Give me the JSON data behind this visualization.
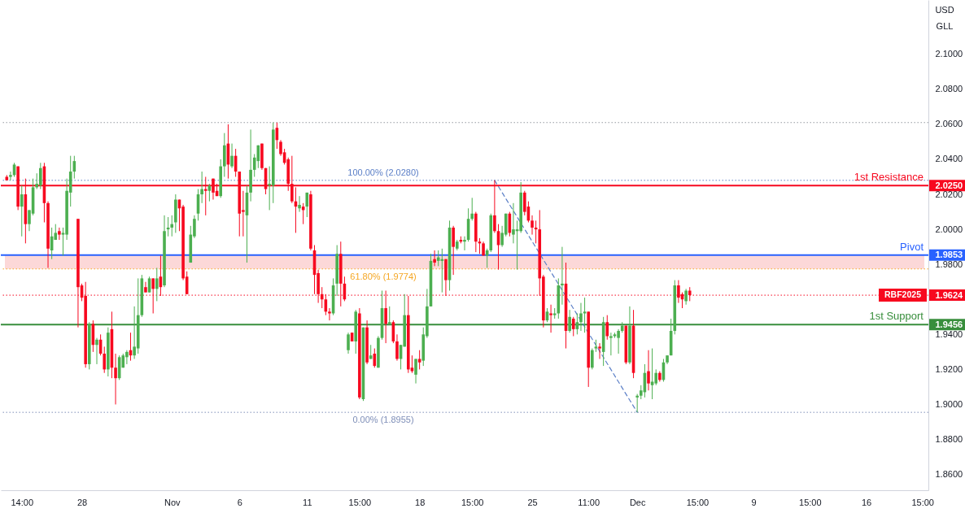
{
  "chart_data": {
    "type": "candlestick",
    "categories": [
      null,
      null,
      null,
      null,
      "14:00",
      null,
      null,
      null,
      null,
      null,
      null,
      null,
      null,
      null,
      null,
      null,
      null,
      null,
      null,
      null,
      "28",
      null,
      null,
      null,
      null,
      null,
      null,
      null,
      null,
      null,
      null,
      null,
      null,
      null,
      null,
      null,
      null,
      null,
      null,
      null,
      null,
      null,
      null,
      null,
      "Nov",
      null,
      null,
      null,
      null,
      null,
      null,
      null,
      null,
      null,
      null,
      null,
      null,
      null,
      null,
      null,
      null,
      null,
      "6",
      null,
      null,
      null,
      null,
      null,
      null,
      null,
      null,
      null,
      null,
      null,
      null,
      null,
      null,
      null,
      null,
      null,
      "11",
      null,
      null,
      null,
      null,
      null,
      null,
      null,
      null,
      null,
      null,
      null,
      null,
      null,
      "15:00",
      null,
      null,
      null,
      null,
      null,
      null,
      null,
      null,
      null,
      null,
      null,
      null,
      null,
      null,
      null,
      "18",
      null,
      null,
      null,
      null,
      null,
      null,
      null,
      null,
      null,
      null,
      null,
      null,
      null,
      "15:00",
      null,
      null,
      null,
      null,
      null,
      null,
      null,
      null,
      null,
      null,
      null,
      null,
      null,
      null,
      null,
      "25",
      null,
      null,
      null,
      null,
      null,
      null,
      null,
      null,
      null,
      null,
      null,
      null,
      null,
      null,
      "11:00",
      null,
      null,
      null,
      null,
      null,
      null,
      null,
      null,
      null,
      null,
      null,
      null,
      "Dec",
      null,
      null,
      null,
      null,
      null,
      null,
      null,
      null,
      null,
      null,
      null,
      null,
      null,
      null,
      null,
      "15:00",
      null,
      null,
      null,
      null,
      null,
      null,
      null,
      null,
      null,
      null,
      null,
      null,
      null,
      null,
      "9",
      null,
      null,
      null,
      null,
      null,
      null,
      null,
      null,
      null,
      null,
      null,
      null,
      null,
      null,
      "15:00",
      null,
      null,
      null,
      null,
      null,
      null,
      null,
      null,
      null,
      null,
      null,
      null,
      null,
      null,
      "16",
      null,
      null,
      null,
      null,
      null,
      null,
      null,
      null,
      null,
      null,
      null,
      null,
      null,
      null,
      "15:00"
    ],
    "ohlc": [
      [
        2.03,
        2.031,
        2.028,
        2.028
      ],
      [
        2.03,
        2.033,
        2.028,
        2.031
      ],
      [
        2.031,
        2.038,
        2.03,
        2.037
      ],
      [
        2.036,
        2.036,
        2.011,
        2.013
      ],
      [
        2.013,
        2.025,
        1.996,
        2.02
      ],
      [
        2.02,
        2.029,
        1.992,
        2.003
      ],
      [
        2.003,
        2.011,
        1.999,
        2.011
      ],
      [
        2.009,
        2.029,
        2.008,
        2.024
      ],
      [
        2.024,
        2.032,
        2.023,
        2.026
      ],
      [
        2.025,
        2.038,
        2.023,
        2.035
      ],
      [
        2.036,
        2.038,
        2.004,
        2.015
      ],
      [
        2.015,
        2.016,
        1.978,
        1.989
      ],
      [
        1.988,
        2.001,
        1.983,
        1.996
      ],
      [
        1.994,
        2.003,
        1.994,
        1.998
      ],
      [
        1.999,
        2.001,
        1.994,
        1.997
      ],
      [
        1.997,
        2.001,
        1.985,
        1.998
      ],
      [
        1.997,
        2.029,
        1.994,
        2.022
      ],
      [
        2.021,
        2.042,
        2.013,
        2.033
      ],
      [
        2.033,
        2.042,
        2.029,
        2.039
      ],
      [
        2.006,
        2.006,
        1.944,
        1.967
      ],
      [
        1.968,
        1.969,
        1.959,
        1.961
      ],
      [
        1.962,
        1.97,
        1.921,
        1.923
      ],
      [
        1.923,
        1.947,
        1.92,
        1.946
      ],
      [
        1.946,
        1.948,
        1.93,
        1.934
      ],
      [
        1.934,
        1.938,
        1.923,
        1.937
      ],
      [
        1.937,
        1.94,
        1.928,
        1.929
      ],
      [
        1.929,
        1.933,
        1.918,
        1.92
      ],
      [
        1.92,
        1.944,
        1.916,
        1.941
      ],
      [
        1.943,
        1.953,
        1.915,
        1.921
      ],
      [
        1.921,
        1.929,
        1.9,
        1.915
      ],
      [
        1.915,
        1.928,
        1.914,
        1.927
      ],
      [
        1.921,
        1.929,
        1.921,
        1.928
      ],
      [
        1.927,
        1.931,
        1.923,
        1.93
      ],
      [
        1.931,
        1.941,
        1.925,
        1.928
      ],
      [
        1.928,
        1.956,
        1.926,
        1.933
      ],
      [
        1.932,
        1.972,
        1.929,
        1.951
      ],
      [
        1.951,
        1.974,
        1.95,
        1.972
      ],
      [
        1.967,
        1.97,
        1.964,
        1.964
      ],
      [
        1.964,
        1.973,
        1.964,
        1.972
      ],
      [
        1.972,
        1.972,
        1.952,
        1.966
      ],
      [
        1.966,
        1.978,
        1.959,
        1.972
      ],
      [
        1.973,
        1.985,
        1.962,
        1.967
      ],
      [
        1.968,
        2.008,
        1.967,
        1.999
      ],
      [
        2.0,
        2.007,
        1.996,
        2.001
      ],
      [
        2.001,
        2.008,
        1.996,
        2.003
      ],
      [
        2.004,
        2.02,
        1.998,
        2.017
      ],
      [
        2.017,
        2.017,
        1.999,
        2.012
      ],
      [
        2.013,
        2.014,
        1.971,
        1.972
      ],
      [
        1.973,
        1.976,
        1.963,
        1.963
      ],
      [
        1.981,
        2.002,
        1.981,
        1.997
      ],
      [
        1.996,
        2.008,
        1.995,
        2.006
      ],
      [
        2.009,
        2.023,
        2.005,
        2.02
      ],
      [
        2.02,
        2.033,
        2.015,
        2.023
      ],
      [
        2.023,
        2.03,
        2.008,
        2.022
      ],
      [
        2.022,
        2.026,
        2.016,
        2.025
      ],
      [
        2.029,
        2.029,
        2.017,
        2.021
      ],
      [
        2.022,
        2.026,
        2.019,
        2.019
      ],
      [
        2.019,
        2.04,
        2.018,
        2.036
      ],
      [
        2.036,
        2.055,
        2.03,
        2.048
      ],
      [
        2.049,
        2.06,
        2.029,
        2.037
      ],
      [
        2.036,
        2.049,
        2.035,
        2.042
      ],
      [
        2.042,
        2.046,
        2.03,
        2.033
      ],
      [
        2.033,
        2.033,
        1.996,
        2.009
      ],
      [
        2.011,
        2.022,
        1.996,
        2.01
      ],
      [
        2.008,
        2.025,
        1.981,
        2.021
      ],
      [
        2.021,
        2.057,
        2.016,
        2.034
      ],
      [
        2.034,
        2.043,
        2.03,
        2.041
      ],
      [
        2.039,
        2.048,
        2.035,
        2.048
      ],
      [
        2.049,
        2.049,
        2.034,
        2.035
      ],
      [
        2.035,
        2.035,
        2.02,
        2.023
      ],
      [
        2.025,
        2.036,
        2.011,
        2.026
      ],
      [
        2.025,
        2.061,
        2.015,
        2.057
      ],
      [
        2.058,
        2.061,
        2.046,
        2.051
      ],
      [
        2.05,
        2.051,
        2.042,
        2.043
      ],
      [
        2.044,
        2.046,
        2.037,
        2.038
      ],
      [
        2.04,
        2.041,
        2.022,
        2.026
      ],
      [
        2.026,
        2.042,
        2.015,
        2.016
      ],
      [
        2.016,
        2.024,
        1.998,
        2.013
      ],
      [
        2.012,
        2.019,
        2.01,
        2.014
      ],
      [
        2.013,
        2.015,
        2.003,
        2.011
      ],
      [
        2.013,
        2.021,
        2.007,
        2.021
      ],
      [
        2.02,
        2.022,
        1.988,
        1.989
      ],
      [
        1.988,
        1.991,
        1.963,
        1.974
      ],
      [
        1.975,
        1.977,
        1.958,
        1.963
      ],
      [
        1.963,
        1.967,
        1.955,
        1.96
      ],
      [
        1.96,
        1.963,
        1.951,
        1.953
      ],
      [
        1.953,
        1.955,
        1.948,
        1.952
      ],
      [
        1.952,
        1.972,
        1.951,
        1.968
      ],
      [
        1.969,
        1.991,
        1.962,
        1.986
      ],
      [
        1.986,
        1.993,
        1.956,
        1.969
      ],
      [
        1.969,
        1.973,
        1.959,
        1.96
      ],
      [
        1.931,
        1.941,
        1.929,
        1.94
      ],
      [
        1.941,
        1.941,
        1.936,
        1.936
      ],
      [
        1.936,
        1.954,
        1.929,
        1.953
      ],
      [
        1.952,
        1.955,
        1.903,
        1.904
      ],
      [
        1.903,
        1.944,
        1.902,
        1.944
      ],
      [
        1.944,
        1.948,
        1.923,
        1.924
      ],
      [
        1.926,
        1.934,
        1.926,
        1.928
      ],
      [
        1.929,
        1.932,
        1.921,
        1.922
      ],
      [
        1.921,
        1.939,
        1.921,
        1.938
      ],
      [
        1.938,
        1.965,
        1.937,
        1.955
      ],
      [
        1.955,
        1.965,
        1.935,
        1.946
      ],
      [
        1.946,
        1.956,
        1.946,
        1.947
      ],
      [
        1.947,
        1.948,
        1.935,
        1.936
      ],
      [
        1.936,
        1.94,
        1.925,
        1.926
      ],
      [
        1.926,
        1.934,
        1.92,
        1.934
      ],
      [
        1.933,
        1.963,
        1.933,
        1.951
      ],
      [
        1.951,
        1.962,
        1.918,
        1.92
      ],
      [
        1.921,
        1.928,
        1.918,
        1.919
      ],
      [
        1.917,
        1.926,
        1.912,
        1.926
      ],
      [
        1.926,
        1.931,
        1.92,
        1.924
      ],
      [
        1.925,
        1.944,
        1.922,
        1.94
      ],
      [
        1.939,
        1.966,
        1.938,
        1.956
      ],
      [
        1.956,
        1.986,
        1.956,
        1.982
      ],
      [
        1.983,
        1.988,
        1.979,
        1.981
      ],
      [
        1.982,
        1.988,
        1.979,
        1.984
      ],
      [
        1.982,
        1.989,
        1.964,
        1.983
      ],
      [
        1.983,
        1.983,
        1.962,
        1.971
      ],
      [
        1.971,
        2.005,
        1.965,
        2.001
      ],
      [
        2.001,
        2.002,
        1.974,
        1.99
      ],
      [
        1.989,
        1.994,
        1.988,
        1.993
      ],
      [
        1.994,
        1.996,
        1.992,
        1.993
      ],
      [
        1.993,
        1.996,
        1.988,
        1.994
      ],
      [
        1.994,
        2.012,
        1.993,
        2.006
      ],
      [
        2.006,
        2.018,
        2.005,
        2.009
      ],
      [
        2.009,
        2.01,
        1.987,
        1.993
      ],
      [
        1.993,
        1.995,
        1.986,
        1.992
      ],
      [
        1.992,
        1.993,
        1.985,
        1.985
      ],
      [
        1.985,
        1.989,
        1.978,
        1.988
      ],
      [
        1.988,
        2.009,
        1.987,
        2.008
      ],
      [
        2.008,
        2.028,
        1.998,
        1.999
      ],
      [
        1.999,
        2.003,
        1.977,
        1.991
      ],
      [
        1.991,
        2.002,
        1.99,
        1.998
      ],
      [
        1.997,
        2.009,
        1.996,
        2.009
      ],
      [
        2.009,
        2.01,
        1.996,
        1.998
      ],
      [
        1.997,
        2.015,
        1.992,
        2.0
      ],
      [
        1.999,
        2.005,
        1.977,
        2.0
      ],
      [
        1.999,
        2.027,
        1.998,
        2.021
      ],
      [
        2.021,
        2.022,
        2.008,
        2.01
      ],
      [
        2.013,
        2.016,
        2.004,
        2.005
      ],
      [
        2.005,
        2.008,
        1.997,
        2.001
      ],
      [
        2.001,
        2.005,
        1.992,
        2.0
      ],
      [
        2.0,
        2.011,
        1.962,
        1.972
      ],
      [
        1.973,
        1.974,
        1.944,
        1.948
      ],
      [
        1.948,
        1.955,
        1.947,
        1.953
      ],
      [
        1.952,
        1.957,
        1.941,
        1.951
      ],
      [
        1.951,
        1.955,
        1.949,
        1.952
      ],
      [
        1.952,
        1.972,
        1.949,
        1.968
      ],
      [
        1.968,
        1.99,
        1.957,
        1.969
      ],
      [
        1.969,
        1.981,
        1.932,
        1.942
      ],
      [
        1.942,
        1.954,
        1.941,
        1.95
      ],
      [
        1.949,
        1.95,
        1.939,
        1.943
      ],
      [
        1.943,
        1.952,
        1.94,
        1.947
      ],
      [
        1.947,
        1.958,
        1.942,
        1.952
      ],
      [
        1.952,
        1.961,
        1.941,
        1.953
      ],
      [
        1.953,
        1.953,
        1.91,
        1.921
      ],
      [
        1.921,
        1.932,
        1.92,
        1.931
      ],
      [
        1.932,
        1.937,
        1.93,
        1.933
      ],
      [
        1.933,
        1.935,
        1.926,
        1.932
      ],
      [
        1.93,
        1.95,
        1.922,
        1.947
      ],
      [
        1.947,
        1.951,
        1.937,
        1.939
      ],
      [
        1.938,
        1.941,
        1.928,
        1.939
      ],
      [
        1.939,
        1.941,
        1.938,
        1.94
      ],
      [
        1.938,
        1.943,
        1.929,
        1.942
      ],
      [
        1.942,
        1.947,
        1.941,
        1.945
      ],
      [
        1.945,
        1.945,
        1.923,
        1.924
      ],
      [
        1.924,
        1.956,
        1.923,
        1.945
      ],
      [
        1.945,
        1.954,
        1.915,
        1.918
      ],
      [
        1.904,
        1.906,
        1.8955,
        1.905
      ],
      [
        1.905,
        1.911,
        1.903,
        1.908
      ],
      [
        1.907,
        1.923,
        1.904,
        1.918
      ],
      [
        1.919,
        1.931,
        1.908,
        1.912
      ],
      [
        1.911,
        1.932,
        1.903,
        1.913
      ],
      [
        1.912,
        1.92,
        1.911,
        1.918
      ],
      [
        1.918,
        1.919,
        1.913,
        1.914
      ],
      [
        1.914,
        1.926,
        1.913,
        1.924
      ],
      [
        1.924,
        1.928,
        1.923,
        1.928
      ],
      [
        1.928,
        1.949,
        1.928,
        1.942
      ],
      [
        1.942,
        1.971,
        1.94,
        1.968
      ],
      [
        1.968,
        1.971,
        1.958,
        1.961
      ],
      [
        1.963,
        1.964,
        1.955,
        1.96
      ],
      [
        1.959,
        1.966,
        1.957,
        1.965
      ],
      [
        1.965,
        1.967,
        1.959,
        1.9624
      ],
      null,
      null,
      null,
      null,
      null,
      null,
      null,
      null,
      null,
      null,
      null,
      null,
      null,
      null,
      null,
      null,
      null,
      null,
      null,
      null,
      null,
      null,
      null,
      null,
      null,
      null,
      null,
      null,
      null,
      null,
      null,
      null,
      null,
      null,
      null,
      null,
      null,
      null,
      null,
      null,
      null,
      null,
      null,
      null,
      null,
      null,
      null,
      null,
      null,
      null,
      null,
      null,
      null,
      null,
      null,
      null,
      null,
      null,
      null,
      null,
      null,
      null
    ],
    "colors": [
      "#f7081f",
      "#4caf50",
      "#4caf50",
      "#f7081f",
      "#4caf50",
      "#f7081f",
      "#4caf50",
      "#4caf50",
      "#4caf50",
      "#4caf50",
      "#f7081f",
      "#f7081f",
      "#4caf50",
      "#4caf50",
      "#f7081f",
      "#4caf50",
      "#4caf50",
      "#4caf50",
      "#4caf50",
      "#f7081f",
      "#f7081f",
      "#f7081f",
      "#4caf50",
      "#f7081f",
      "#4caf50",
      "#f7081f",
      "#f7081f",
      "#4caf50",
      "#f7081f",
      "#f7081f",
      "#4caf50",
      "#4caf50",
      "#4caf50",
      "#f7081f",
      "#4caf50",
      "#4caf50",
      "#4caf50",
      "#f7081f",
      "#4caf50",
      "#f7081f",
      "#4caf50",
      "#f7081f",
      "#4caf50",
      "#4caf50",
      "#4caf50",
      "#4caf50",
      "#f7081f",
      "#f7081f",
      "#f7081f",
      "#4caf50",
      "#4caf50",
      "#4caf50",
      "#4caf50",
      "#f7081f",
      "#4caf50",
      "#f7081f",
      "#f7081f",
      "#4caf50",
      "#4caf50",
      "#f7081f",
      "#4caf50",
      "#f7081f",
      "#f7081f",
      "#f7081f",
      "#4caf50",
      "#4caf50",
      "#4caf50",
      "#4caf50",
      "#f7081f",
      "#f7081f",
      "#4caf50",
      "#4caf50",
      "#f7081f",
      "#f7081f",
      "#f7081f",
      "#f7081f",
      "#f7081f",
      "#f7081f",
      "#4caf50",
      "#f7081f",
      "#4caf50",
      "#f7081f",
      "#f7081f",
      "#f7081f",
      "#f7081f",
      "#f7081f",
      "#f7081f",
      "#4caf50",
      "#4caf50",
      "#f7081f",
      "#f7081f",
      "#4caf50",
      "#f7081f",
      "#4caf50",
      "#f7081f",
      "#4caf50",
      "#f7081f",
      "#4caf50",
      "#f7081f",
      "#4caf50",
      "#4caf50",
      "#f7081f",
      "#4caf50",
      "#f7081f",
      "#f7081f",
      "#4caf50",
      "#4caf50",
      "#f7081f",
      "#f7081f",
      "#4caf50",
      "#f7081f",
      "#4caf50",
      "#4caf50",
      "#4caf50",
      "#f7081f",
      "#4caf50",
      "#4caf50",
      "#f7081f",
      "#4caf50",
      "#f7081f",
      "#4caf50",
      "#f7081f",
      "#4caf50",
      "#4caf50",
      "#4caf50",
      "#f7081f",
      "#f7081f",
      "#f7081f",
      "#4caf50",
      "#4caf50",
      "#f7081f",
      "#f7081f",
      "#4caf50",
      "#4caf50",
      "#f7081f",
      "#4caf50",
      "#4caf50",
      "#4caf50",
      "#f7081f",
      "#f7081f",
      "#f7081f",
      "#f7081f",
      "#f7081f",
      "#f7081f",
      "#4caf50",
      "#f7081f",
      "#4caf50",
      "#4caf50",
      "#4caf50",
      "#f7081f",
      "#4caf50",
      "#f7081f",
      "#4caf50",
      "#4caf50",
      "#4caf50",
      "#f7081f",
      "#4caf50",
      "#4caf50",
      "#f7081f",
      "#4caf50",
      "#f7081f",
      "#4caf50",
      "#4caf50",
      "#4caf50",
      "#4caf50",
      "#f7081f",
      "#4caf50",
      "#f7081f",
      "#4caf50",
      "#4caf50",
      "#4caf50",
      "#f7081f",
      "#4caf50",
      "#4caf50",
      "#f7081f",
      "#4caf50",
      "#4caf50",
      "#4caf50",
      "#4caf50",
      "#f7081f",
      "#f7081f",
      "#4caf50",
      "#f7081f",
      null,
      null,
      null,
      null,
      null,
      null,
      null,
      null,
      null,
      null,
      null,
      null,
      null,
      null,
      null,
      null,
      null,
      null,
      null,
      null,
      null,
      null,
      null,
      null,
      null,
      null,
      null,
      null,
      null,
      null,
      null,
      null,
      null,
      null,
      null,
      null,
      null,
      null,
      null,
      null,
      null,
      null,
      null,
      null,
      null,
      null,
      null,
      null,
      null,
      null,
      null,
      null,
      null,
      null,
      null,
      null,
      null,
      null,
      null,
      null,
      null,
      null
    ],
    "series": [
      {
        "type": "line",
        "color": "#5b7fc7",
        "line_style": "dashed",
        "values": [
          null,
          null,
          null,
          null,
          null,
          null,
          null,
          null,
          null,
          null,
          null,
          null,
          null,
          null,
          null,
          null,
          null,
          null,
          null,
          null,
          null,
          null,
          null,
          null,
          null,
          null,
          null,
          null,
          null,
          null,
          null,
          null,
          null,
          null,
          null,
          null,
          null,
          null,
          null,
          null,
          null,
          null,
          null,
          null,
          null,
          null,
          null,
          null,
          null,
          null,
          null,
          null,
          null,
          null,
          null,
          null,
          null,
          null,
          null,
          null,
          null,
          null,
          null,
          null,
          null,
          null,
          null,
          null,
          null,
          null,
          null,
          null,
          null,
          null,
          null,
          null,
          null,
          null,
          null,
          null,
          null,
          null,
          null,
          null,
          null,
          null,
          null,
          null,
          null,
          null,
          null,
          null,
          null,
          null,
          null,
          null,
          null,
          null,
          null,
          null,
          null,
          null,
          null,
          null,
          null,
          null,
          null,
          null,
          null,
          null,
          null,
          null,
          null,
          null,
          null,
          null,
          null,
          null,
          null,
          null,
          null,
          null,
          null,
          null,
          null,
          null,
          null,
          null,
          null,
          null,
          2.028,
          null,
          null,
          null,
          null,
          null,
          null,
          null,
          null,
          null,
          null,
          null,
          null,
          null,
          null,
          null,
          null,
          null,
          null,
          null,
          null,
          null,
          null,
          null,
          null,
          null,
          null,
          null,
          null,
          null,
          null,
          null,
          null,
          null,
          null,
          null,
          null,
          null,
          1.8955,
          null,
          null,
          null,
          null,
          null,
          null,
          null,
          null,
          null,
          null,
          null,
          null,
          null,
          null,
          null,
          null,
          null,
          null,
          null,
          null,
          null,
          null,
          null,
          null,
          null,
          null,
          null,
          null,
          null,
          null,
          null,
          null,
          null,
          null,
          null,
          null,
          null,
          null,
          null,
          null,
          null,
          null,
          null,
          null,
          null,
          null,
          null,
          null,
          null,
          null,
          null,
          null,
          null,
          null,
          null,
          null,
          null,
          null,
          null,
          null,
          null,
          null,
          null,
          null,
          null,
          null,
          null,
          null,
          null,
          null,
          null,
          null,
          null,
          null,
          null,
          null
        ]
      }
    ],
    "ylim": [
      1.851,
      2.131
    ],
    "yticks": [
      {
        "value": 1.86,
        "label": "1.8600"
      },
      {
        "value": 1.88,
        "label": "1.8800"
      },
      {
        "value": 1.9,
        "label": "1.9000"
      },
      {
        "value": 1.92,
        "label": "1.9200"
      },
      {
        "value": 1.94,
        "label": "1.9400"
      },
      {
        "value": 1.9456,
        "label": "1.9456"
      },
      {
        "value": 1.9624,
        "label": "1.9624"
      },
      {
        "value": 1.98,
        "label": "1.9800"
      },
      {
        "value": 1.9853,
        "label": "1.9853"
      },
      {
        "value": 2.0,
        "label": "2.0000"
      },
      {
        "value": 2.02,
        "label": "2.0200"
      },
      {
        "value": 2.025,
        "label": "2.0250"
      },
      {
        "value": 2.04,
        "label": "2.0400"
      },
      {
        "value": 2.06,
        "label": "2.0600"
      },
      {
        "value": 2.08,
        "label": "2.0800"
      },
      {
        "value": 2.1,
        "label": "2.1000"
      }
    ],
    "ref_lines": [
      {
        "axis": "y",
        "value": 2.061,
        "color": "#9598a1",
        "line_style": "dotted"
      },
      {
        "axis": "y",
        "value": 2.028,
        "color": "#5b7fc7",
        "line_style": "dotted"
      },
      {
        "axis": "y",
        "value": 2.025,
        "label": "1st Resistance",
        "color": "#f7081f",
        "line_style": "solid"
      },
      {
        "axis": "y",
        "value": 1.9853,
        "label": "Pivot",
        "color": "#2962ff",
        "line_style": "solid"
      },
      {
        "axis": "y",
        "value": 1.9774,
        "color": "#f5a623",
        "line_style": "dotted"
      },
      {
        "axis": "y",
        "value": 1.9624,
        "label": "RBF2025",
        "color": "#f7081f",
        "line_style": "dotted"
      },
      {
        "axis": "y",
        "value": 1.9456,
        "label": "1st Support",
        "color": "#388e3c",
        "line_style": "solid"
      },
      {
        "axis": "y",
        "value": 1.8955,
        "color": "#7f8fb8",
        "line_style": "dotted"
      }
    ],
    "bands": [
      {
        "axis": "y",
        "from": 1.9774,
        "to": 1.9853,
        "color": "#fcd8d8"
      }
    ],
    "annotations": [
      "USD",
      "GLL",
      {
        "text": "100.00% (2.0280)",
        "y": 2.028
      },
      {
        "text": "61.80% (1.9774)",
        "y": 1.9774
      },
      {
        "text": "0.00% (1.8955)",
        "y": 1.8955
      }
    ]
  }
}
